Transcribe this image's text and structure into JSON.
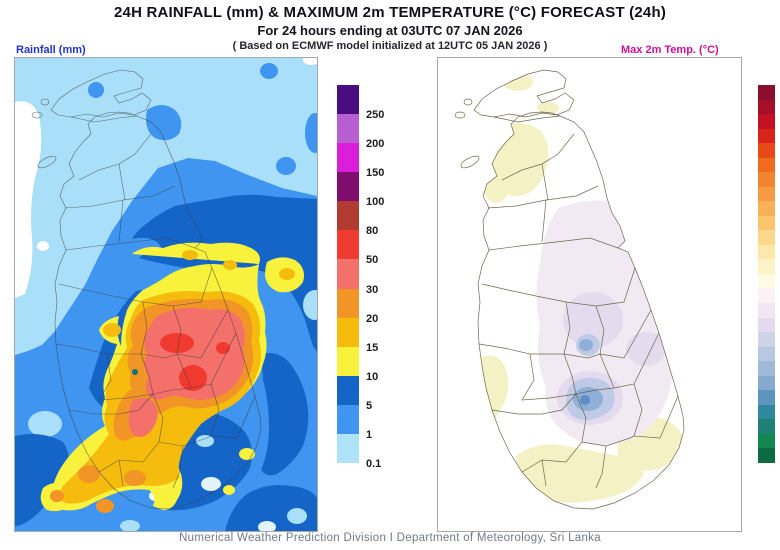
{
  "header": {
    "title": "24H RAINFALL (mm) & MAXIMUM 2m TEMPERATURE (°C) FORECAST (24h)",
    "subtitle": "For 24 hours ending at 03UTC 07 JAN 2026",
    "model_note": "( Based on ECMWF model initialized at 12UTC 05 JAN 2026 )"
  },
  "left_panel": {
    "label": "Rainfall (mm)",
    "label_color": "#2233cc",
    "content": "rainfall contour map of Sri Lanka"
  },
  "right_panel": {
    "label": "Max 2m Temp. (°C)",
    "label_color": "#cc1199",
    "content": "max 2m temperature shaded map of Sri Lanka"
  },
  "rainfall_colorbar": {
    "units": "mm",
    "steps": [
      {
        "color": "#4A0D80",
        "label": "250"
      },
      {
        "color": "#B55FD1",
        "label": "200"
      },
      {
        "color": "#DB1EDB",
        "label": "150"
      },
      {
        "color": "#7E0D6E",
        "label": "100"
      },
      {
        "color": "#B13A31",
        "label": "80"
      },
      {
        "color": "#F03B31",
        "label": "50"
      },
      {
        "color": "#F4706B",
        "label": "30"
      },
      {
        "color": "#F09526",
        "label": "20"
      },
      {
        "color": "#F5BC0E",
        "label": "15"
      },
      {
        "color": "#F8F23C",
        "label": "10"
      },
      {
        "color": "#1565C8",
        "label": "5"
      },
      {
        "color": "#3F95EF",
        "label": "1"
      },
      {
        "color": "#AEE3FA",
        "label": "0.1"
      }
    ]
  },
  "temp_colorbar": {
    "units": "°C",
    "labels_visible": false,
    "colors": [
      "#8C0E2E",
      "#A60F27",
      "#C11123",
      "#D8251C",
      "#E74A17",
      "#EF6B1E",
      "#F3842F",
      "#F69B45",
      "#F9B057",
      "#FBC56F",
      "#FCD88E",
      "#FDE7AB",
      "#FEF3C8",
      "#FFFBE2",
      "#FDF1F6",
      "#F3E5F1",
      "#E3DBED",
      "#CED3E8",
      "#B7C8E0",
      "#9FBAD8",
      "#85AACD",
      "#5E95BE",
      "#2F889E",
      "#1F8076",
      "#13874F",
      "#0C6B42"
    ]
  },
  "footer": {
    "text": "Numerical Weather Prediction Division I Department of Meteorology, Sri Lanka"
  }
}
